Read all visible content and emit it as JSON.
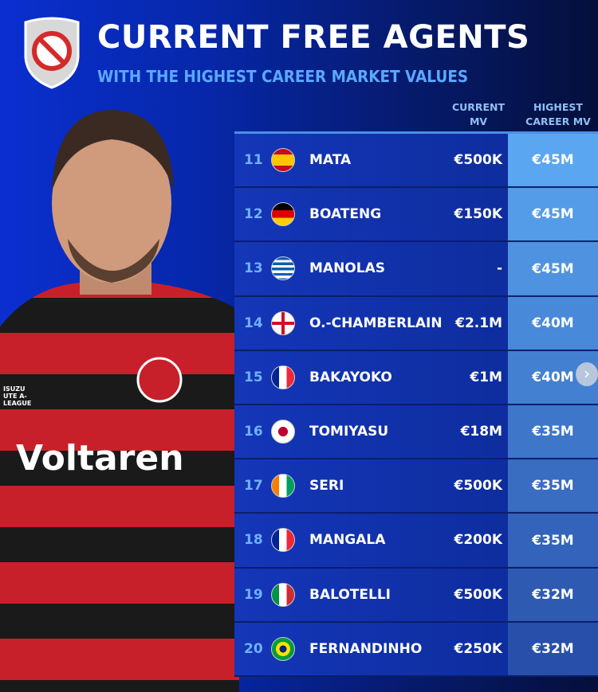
{
  "header": {
    "title": "CURRENT FREE AGENTS",
    "subtitle": "WITH THE HIGHEST CAREER MARKET VALUES",
    "badge_icon": "no-entry-shield-icon"
  },
  "columns": {
    "current": "CURRENT MV",
    "career": "HIGHEST CAREER MV"
  },
  "colors": {
    "accent": "#5aa8ff",
    "row": "#1436b8"
  },
  "rows": [
    {
      "rank": "11",
      "flag": "spain",
      "name": "MATA",
      "current": "€500K",
      "career": "€45M"
    },
    {
      "rank": "12",
      "flag": "germany",
      "name": "BOATENG",
      "current": "€150K",
      "career": "€45M"
    },
    {
      "rank": "13",
      "flag": "greece",
      "name": "MANOLAS",
      "current": "-",
      "career": "€45M"
    },
    {
      "rank": "14",
      "flag": "england",
      "name": "O.-CHAMBERLAIN",
      "current": "€2.1M",
      "career": "€40M"
    },
    {
      "rank": "15",
      "flag": "france",
      "name": "BAKAYOKO",
      "current": "€1M",
      "career": "€40M"
    },
    {
      "rank": "16",
      "flag": "japan",
      "name": "TOMIYASU",
      "current": "€18M",
      "career": "€35M"
    },
    {
      "rank": "17",
      "flag": "ivory-coast",
      "name": "SERI",
      "current": "€500K",
      "career": "€35M"
    },
    {
      "rank": "18",
      "flag": "france",
      "name": "MANGALA",
      "current": "€200K",
      "career": "€35M"
    },
    {
      "rank": "19",
      "flag": "italy",
      "name": "BALOTELLI",
      "current": "€500K",
      "career": "€32M"
    },
    {
      "rank": "20",
      "flag": "brazil",
      "name": "FERNANDINHO",
      "current": "€250K",
      "career": "€32M"
    }
  ],
  "jersey": {
    "sponsor": "Voltaren",
    "sleeve": "ISUZU UTE A-LEAGUE"
  },
  "next_icon": "chevron-right-icon"
}
